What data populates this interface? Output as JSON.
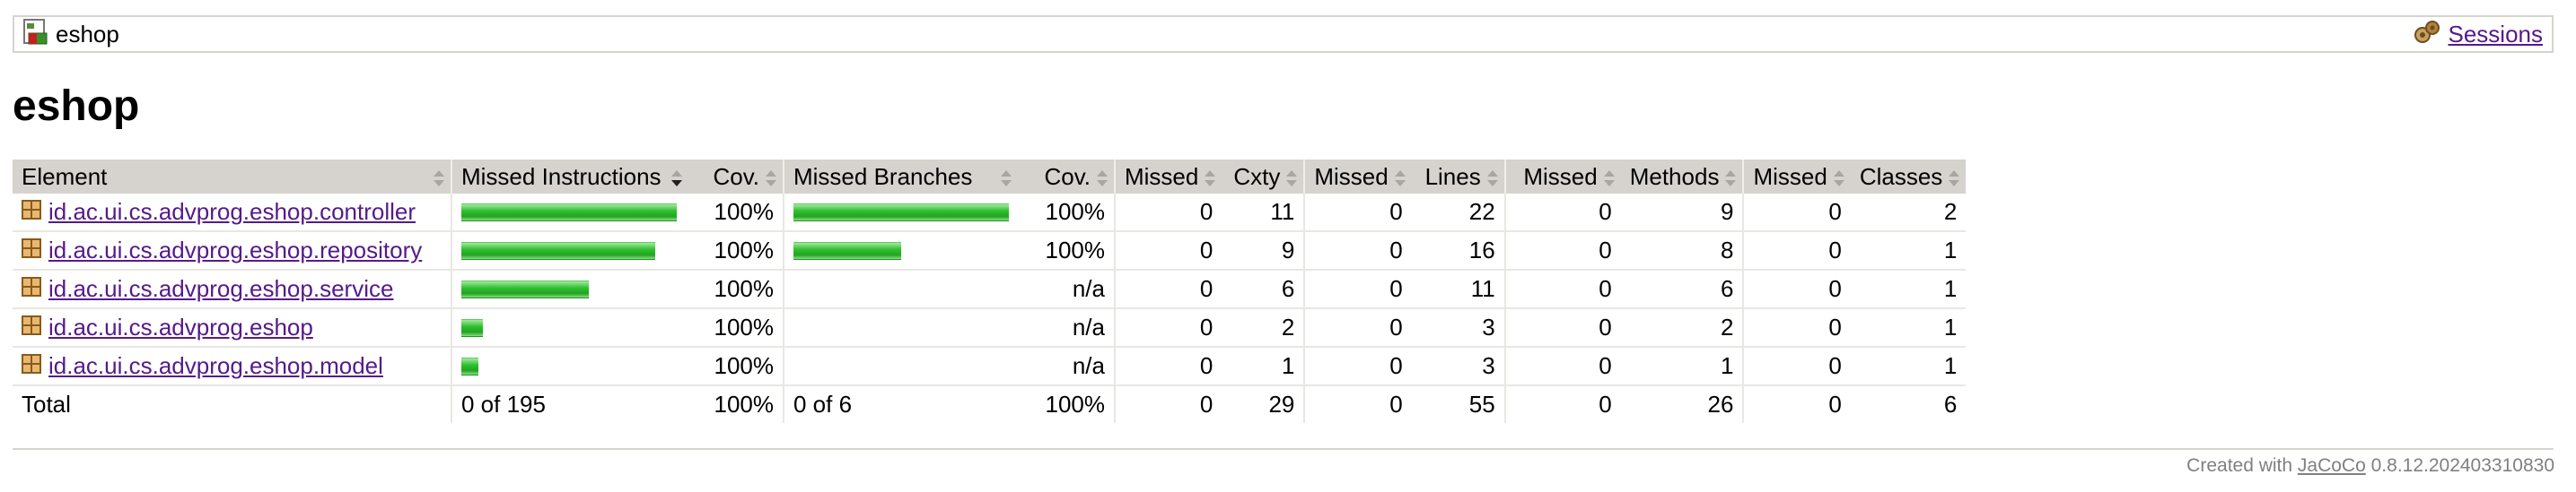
{
  "breadcrumb": {
    "label": "eshop",
    "icon": "report-icon",
    "sessions_label": "Sessions",
    "sessions_icon": "sessions-icon"
  },
  "page_title": "eshop",
  "table": {
    "headers": {
      "element": "Element",
      "missed_instructions": "Missed Instructions",
      "cov_instructions": "Cov.",
      "missed_branches": "Missed Branches",
      "cov_branches": "Cov.",
      "missed_cxty": "Missed",
      "cxty": "Cxty",
      "missed_lines": "Missed",
      "lines": "Lines",
      "missed_methods": "Missed",
      "methods": "Methods",
      "missed_classes": "Missed",
      "classes": "Classes"
    },
    "rows": [
      {
        "name": "id.ac.ui.cs.advprog.eshop.controller",
        "instr_fraction": 1.0,
        "instr_cov": "100%",
        "branch_fraction": 1.0,
        "branch_cov": "100%",
        "missed_cxty": "0",
        "cxty": "11",
        "missed_lines": "0",
        "lines": "22",
        "missed_methods": "0",
        "methods": "9",
        "missed_classes": "0",
        "classes": "2"
      },
      {
        "name": "id.ac.ui.cs.advprog.eshop.repository",
        "instr_fraction": 0.9,
        "instr_cov": "100%",
        "branch_fraction": 0.5,
        "branch_cov": "100%",
        "missed_cxty": "0",
        "cxty": "9",
        "missed_lines": "0",
        "lines": "16",
        "missed_methods": "0",
        "methods": "8",
        "missed_classes": "0",
        "classes": "1"
      },
      {
        "name": "id.ac.ui.cs.advprog.eshop.service",
        "instr_fraction": 0.59,
        "instr_cov": "100%",
        "branch_fraction": 0,
        "branch_cov": "n/a",
        "missed_cxty": "0",
        "cxty": "6",
        "missed_lines": "0",
        "lines": "11",
        "missed_methods": "0",
        "methods": "6",
        "missed_classes": "0",
        "classes": "1"
      },
      {
        "name": "id.ac.ui.cs.advprog.eshop",
        "instr_fraction": 0.1,
        "instr_cov": "100%",
        "branch_fraction": 0,
        "branch_cov": "n/a",
        "missed_cxty": "0",
        "cxty": "2",
        "missed_lines": "0",
        "lines": "3",
        "missed_methods": "0",
        "methods": "2",
        "missed_classes": "0",
        "classes": "1"
      },
      {
        "name": "id.ac.ui.cs.advprog.eshop.model",
        "instr_fraction": 0.08,
        "instr_cov": "100%",
        "branch_fraction": 0,
        "branch_cov": "n/a",
        "missed_cxty": "0",
        "cxty": "1",
        "missed_lines": "0",
        "lines": "3",
        "missed_methods": "0",
        "methods": "1",
        "missed_classes": "0",
        "classes": "1"
      }
    ],
    "total": {
      "label": "Total",
      "missed_instructions": "0 of 195",
      "instr_cov": "100%",
      "missed_branches": "0 of 6",
      "branch_cov": "100%",
      "missed_cxty": "0",
      "cxty": "29",
      "missed_lines": "0",
      "lines": "55",
      "missed_methods": "0",
      "methods": "26",
      "missed_classes": "0",
      "classes": "6"
    }
  },
  "footer": {
    "prefix": "Created with",
    "tool": "JaCoCo",
    "version": "0.8.12.202403310830"
  },
  "colors": {
    "header_bg": "#d6d3ce",
    "bar_green": "#2fc12f",
    "link": "#551a8b"
  }
}
